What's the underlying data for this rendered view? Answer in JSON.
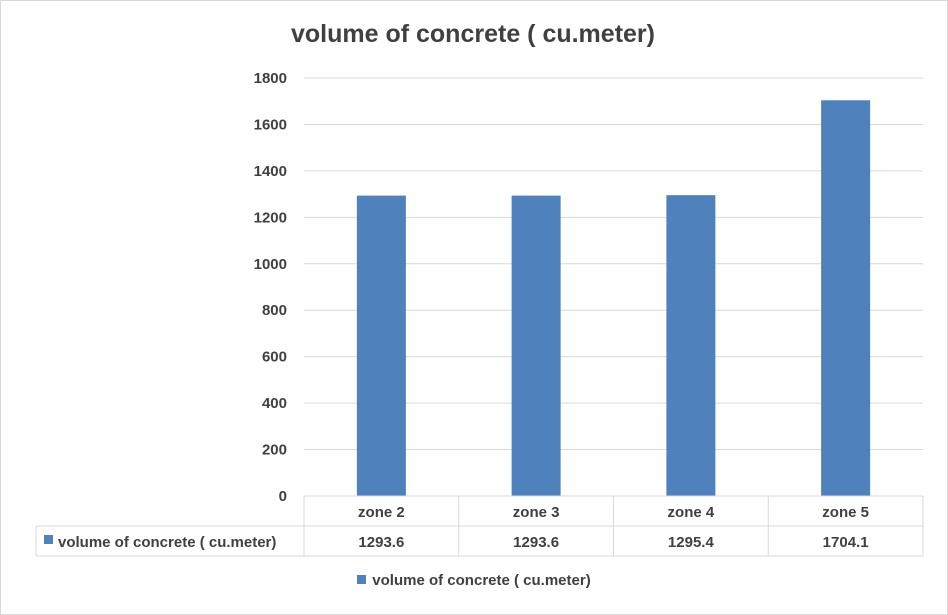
{
  "chart_data": {
    "type": "bar",
    "title": "volume of concrete ( cu.meter)",
    "categories": [
      "zone 2",
      "zone 3",
      "zone 4",
      "zone 5"
    ],
    "series": [
      {
        "name": "volume of concrete ( cu.meter)",
        "values": [
          1293.6,
          1293.6,
          1295.4,
          1704.1
        ],
        "color": "#4f81bd"
      }
    ],
    "ylim": [
      0,
      1800
    ],
    "yticks": [
      "0",
      "200",
      "400",
      "600",
      "800",
      "1000",
      "1200",
      "1400",
      "1600",
      "1800"
    ],
    "data_table": {
      "row_label": "volume of concrete ( cu.meter)",
      "values": [
        "1293.6",
        "1293.6",
        "1295.4",
        "1704.1"
      ]
    },
    "grid": true,
    "legend_position": "bottom",
    "legend_label": "volume of concrete ( cu.meter)"
  }
}
